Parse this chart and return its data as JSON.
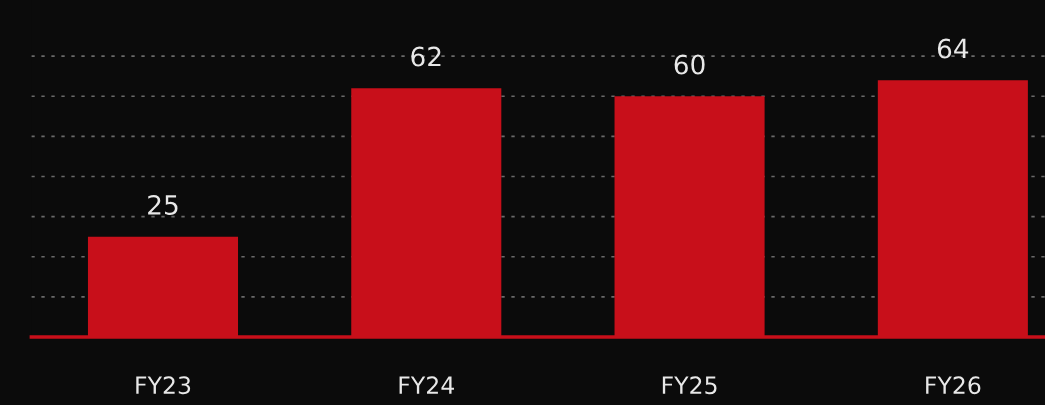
{
  "chart_data": {
    "type": "bar",
    "categories": [
      "FY23",
      "FY24",
      "FY25",
      "FY26"
    ],
    "values": [
      25,
      62,
      60,
      64
    ],
    "color": "#c80f1a",
    "data_labels": true,
    "ylim": [
      0,
      84
    ],
    "yticks": [
      {
        "value": 10,
        "label": null
      },
      {
        "value": 20,
        "label": null
      },
      {
        "value": 30,
        "label": null
      },
      {
        "value": 40,
        "label": null
      },
      {
        "value": 50,
        "label": null
      },
      {
        "value": 60,
        "label": null
      },
      {
        "value": 70,
        "label": null
      }
    ],
    "tick_labels": "x",
    "grid": "y"
  }
}
